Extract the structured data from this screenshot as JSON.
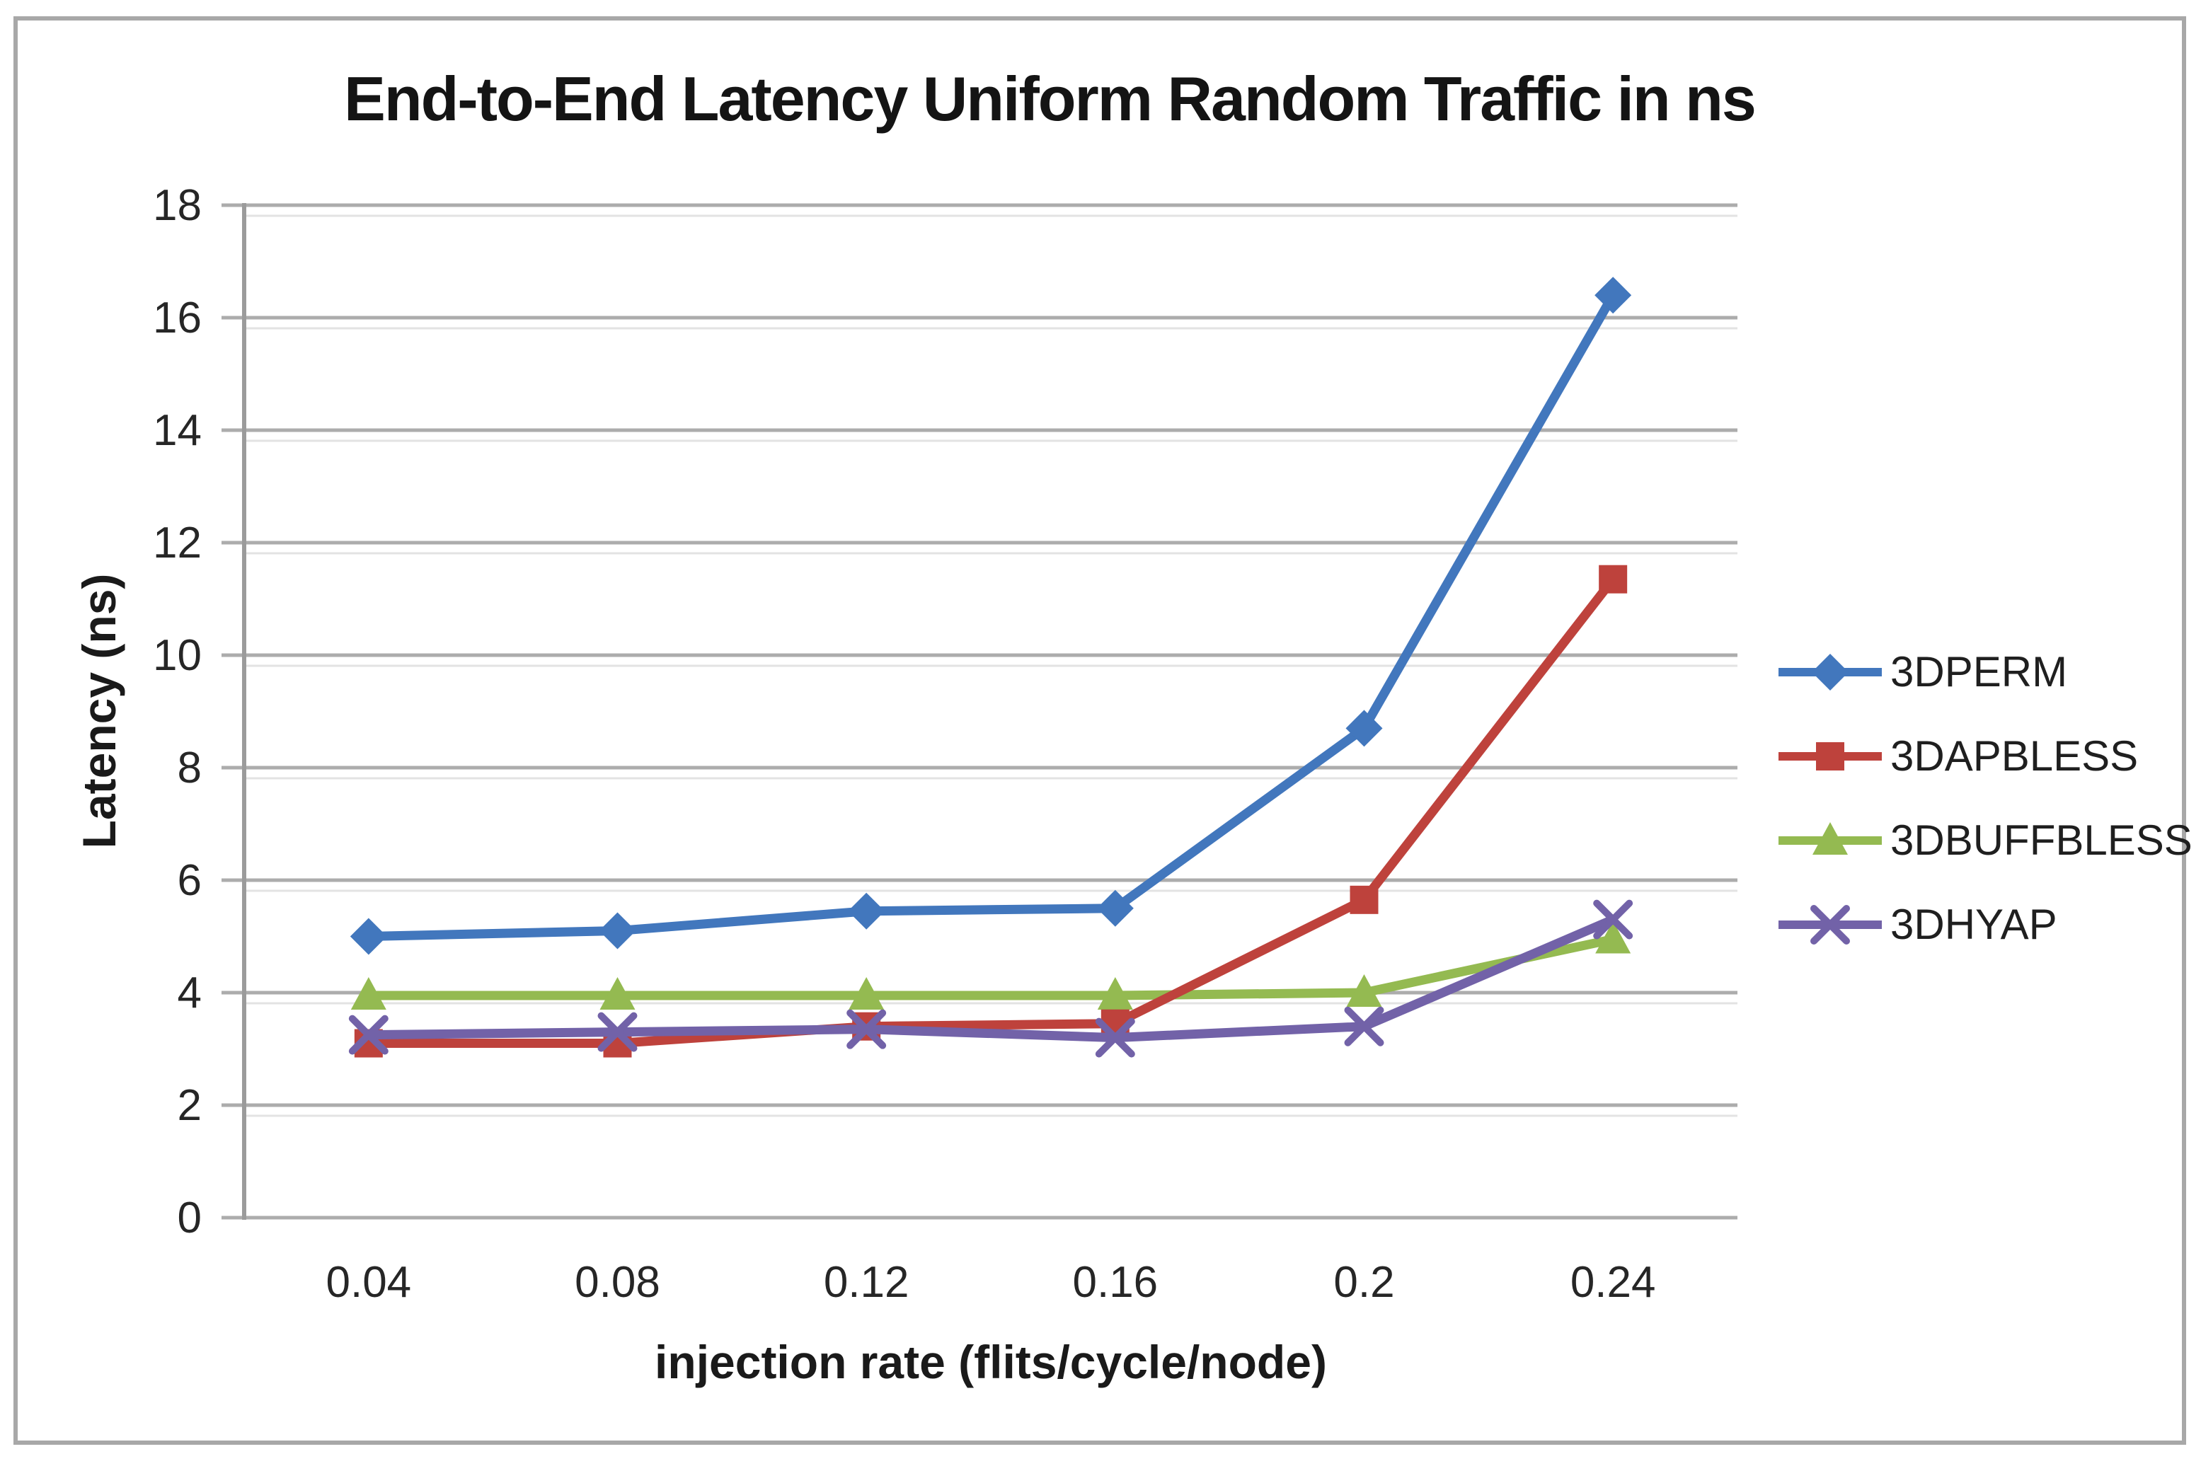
{
  "page": {
    "background": "#FFFFFF",
    "border_color": "#A8A8A8"
  },
  "chart_data": {
    "type": "line",
    "title": "End-to-End Latency Uniform Random Traffic in ns",
    "xlabel": "injection rate (flits/cycle/node)",
    "ylabel": "Latency (ns)",
    "categories": [
      "0.04",
      "0.08",
      "0.12",
      "0.16",
      "0.2",
      "0.24"
    ],
    "x_values": [
      0.04,
      0.08,
      0.12,
      0.16,
      0.2,
      0.24
    ],
    "ylim": [
      0,
      18
    ],
    "y_ticks": [
      0,
      2,
      4,
      6,
      8,
      10,
      12,
      14,
      16,
      18
    ],
    "grid": true,
    "legend_position": "right",
    "series": [
      {
        "name": "3DPERM",
        "marker": "diamond",
        "color": "#4277BD",
        "values": [
          5.0,
          5.1,
          5.45,
          5.5,
          8.7,
          16.4
        ]
      },
      {
        "name": "3DAPBLESS",
        "marker": "square",
        "color": "#BE423C",
        "values": [
          3.1,
          3.1,
          3.4,
          3.45,
          5.65,
          11.35
        ]
      },
      {
        "name": "3DBUFFBLESS",
        "marker": "triangle",
        "color": "#94BA51",
        "values": [
          3.95,
          3.95,
          3.95,
          3.95,
          4.0,
          4.95
        ]
      },
      {
        "name": "3DHYAP",
        "marker": "x",
        "color": "#7262A8",
        "values": [
          3.25,
          3.3,
          3.35,
          3.2,
          3.4,
          5.3
        ]
      }
    ],
    "styles": {
      "gridline_color": "#ACACAC",
      "gridline_echo_color": "#E3E3E3",
      "axis_color": "#9B9B9B",
      "tick_text_color": "#262626",
      "title_color": "#141414"
    }
  }
}
